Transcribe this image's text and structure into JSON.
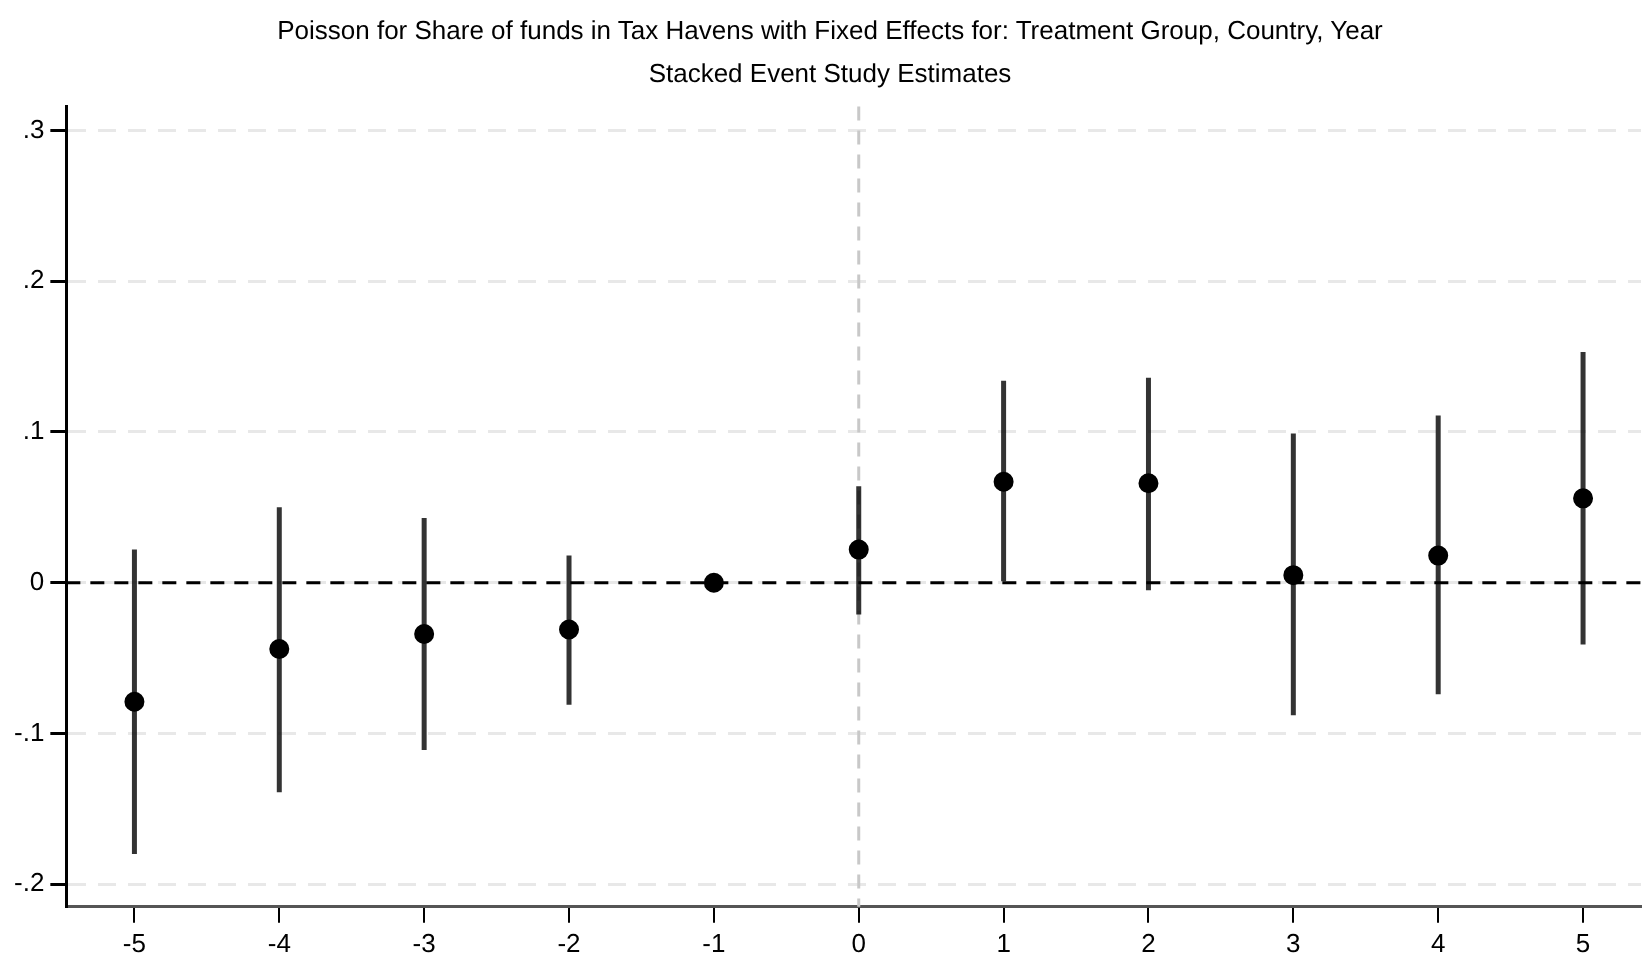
{
  "chart_data": {
    "type": "scatter",
    "title": "Poisson for Share of funds in Tax Havens with Fixed Effects for: Treatment Group, Country, Year",
    "subtitle": "Stacked Event Study Estimates",
    "series": [
      {
        "color": "#000000",
        "x": [
          -5,
          -4,
          -3,
          -2,
          -1,
          0,
          1,
          2,
          3,
          4,
          5
        ],
        "values": [
          -0.079,
          -0.044,
          -0.034,
          -0.031,
          0,
          0.022,
          0.067,
          0.066,
          0.005,
          0.018,
          0.056
        ],
        "errors": [
          [
            -0.18,
            0.022
          ],
          [
            -0.139,
            0.05
          ],
          [
            -0.111,
            0.043
          ],
          [
            -0.081,
            0.018
          ],
          null,
          [
            -0.021,
            0.064
          ],
          [
            0.001,
            0.134
          ],
          [
            -0.005,
            0.136
          ],
          [
            -0.088,
            0.099
          ],
          [
            -0.074,
            0.111
          ],
          [
            -0.041,
            0.153
          ]
        ]
      }
    ],
    "xlim": [
      -5.47,
      5.4
    ],
    "xticks": [
      -5,
      -4,
      -3,
      -2,
      -1,
      0,
      1,
      2,
      3,
      4,
      5
    ],
    "ylim": [
      -0.215,
      0.316
    ],
    "yticks": [
      {
        "value": -0.2,
        "label": "-.2"
      },
      {
        "value": -0.1,
        "label": "-.1"
      },
      {
        "value": 0,
        "label": "0"
      },
      {
        "value": 0.1,
        "label": ".1"
      },
      {
        "value": 0.2,
        "label": ".2"
      },
      {
        "value": 0.3,
        "label": ".3"
      }
    ],
    "ref_lines": [
      {
        "axis": "y",
        "value": 0,
        "color": "#000000",
        "line_style": "dashed"
      },
      {
        "axis": "x",
        "value": 0,
        "color": "#c8c8c8",
        "line_style": "dashed"
      }
    ],
    "grid": "y",
    "marker": "circle",
    "legend": false
  }
}
